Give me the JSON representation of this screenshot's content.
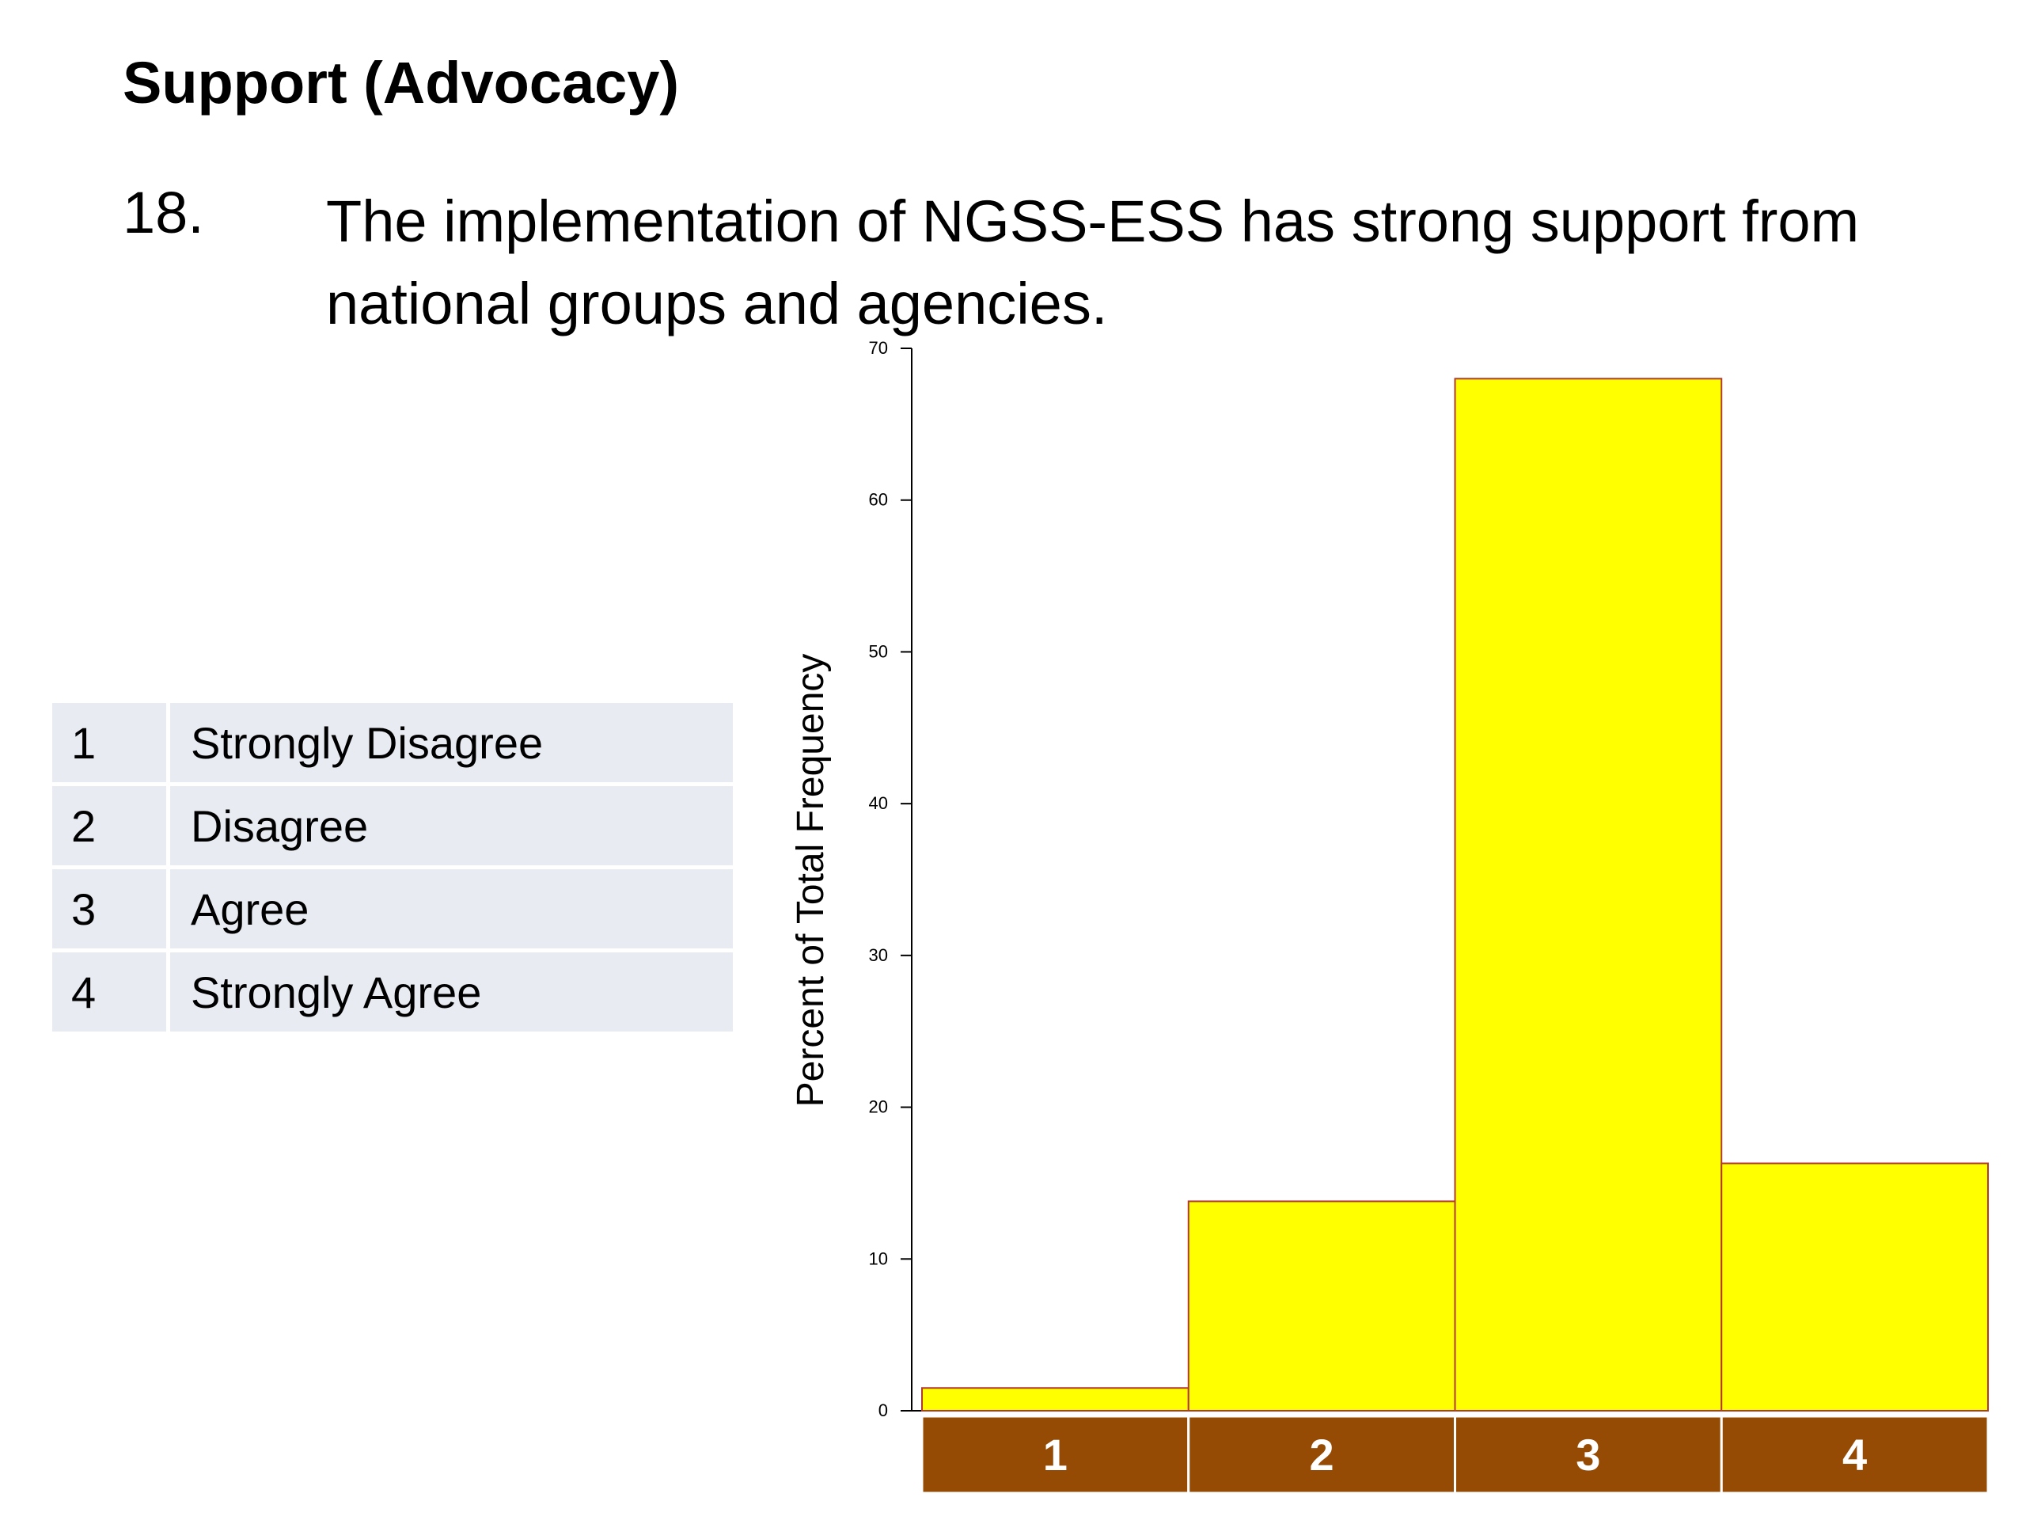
{
  "slide": {
    "section_title": "Support (Advocacy)",
    "question_number": "18.",
    "question_text": "The implementation of NGSS-ESS has strong support from national groups and agencies."
  },
  "legend": [
    {
      "code": "1",
      "label": "Strongly Disagree"
    },
    {
      "code": "2",
      "label": "Disagree"
    },
    {
      "code": "3",
      "label": "Agree"
    },
    {
      "code": "4",
      "label": "Strongly Agree"
    }
  ],
  "colors": {
    "bar_fill": "#ffff00",
    "bar_stroke": "#b03a2e",
    "category_band": "#964b05",
    "category_text": "#ffffff",
    "legend_cell": "#e8ebf2",
    "axis": "#000000"
  },
  "chart_data": {
    "type": "bar",
    "title": "",
    "xlabel": "",
    "ylabel": "Percent of Total Frequency",
    "categories": [
      "1",
      "2",
      "3",
      "4"
    ],
    "values": [
      1.5,
      13.8,
      68.0,
      16.3
    ],
    "ylim": [
      0,
      70
    ],
    "yticks": [
      0,
      10,
      20,
      30,
      40,
      50,
      60,
      70
    ],
    "grid": false,
    "legend": "none"
  }
}
